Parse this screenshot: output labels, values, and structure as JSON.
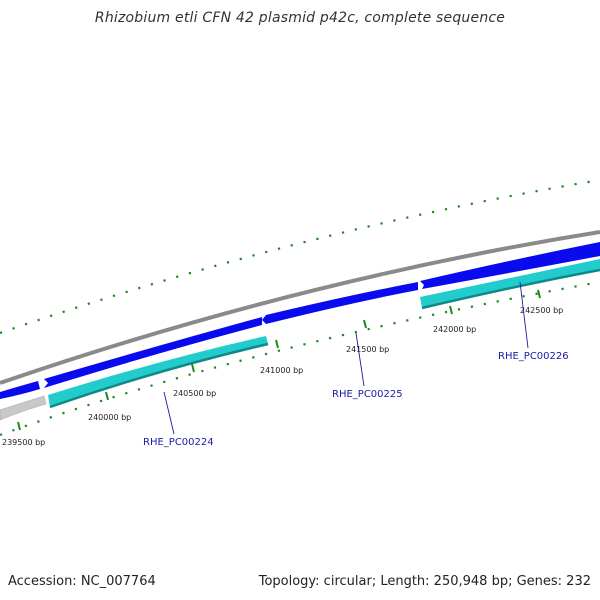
{
  "title": "Rhizobium etli CFN 42 plasmid p42c, complete sequence",
  "footer": {
    "accession": "Accession: NC_007764",
    "summary": "Topology: circular; Length: 250,948 bp; Genes: 232"
  },
  "colors": {
    "backbone": "#8a8a8a",
    "forward_cds": "#0a0aee",
    "reverse_cds": "#22cccc",
    "reverse_cds_edge": "#118888",
    "grey_feature": "#c8c8c8",
    "tick": "#1e8a1e",
    "gene_label": "#1a1aa6"
  },
  "ticks": [
    {
      "label": "239500 bp"
    },
    {
      "label": "240000 bp"
    },
    {
      "label": "240500 bp"
    },
    {
      "label": "241000 bp"
    },
    {
      "label": "241500 bp"
    },
    {
      "label": "242000 bp"
    },
    {
      "label": "242500 bp"
    }
  ],
  "genes": [
    {
      "label": "RHE_PC00224"
    },
    {
      "label": "RHE_PC00225"
    },
    {
      "label": "RHE_PC00226"
    }
  ]
}
